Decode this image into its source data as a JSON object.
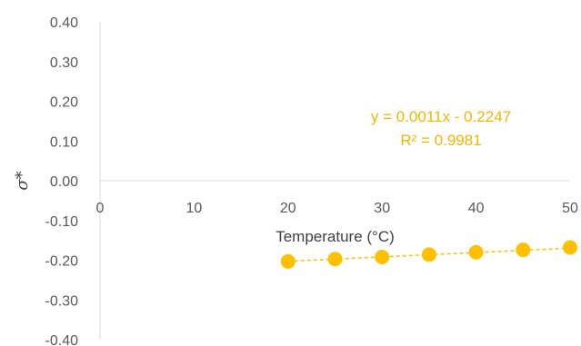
{
  "chart_data": {
    "type": "scatter",
    "xlabel": "Temperature (°C)",
    "ylabel": "σ*",
    "xlim": [
      0,
      50
    ],
    "ylim": [
      -0.4,
      0.4
    ],
    "x_ticks": [
      "0",
      "10",
      "20",
      "30",
      "40",
      "50"
    ],
    "y_ticks": [
      "0.40",
      "0.30",
      "0.20",
      "0.10",
      "0.00",
      "-0.10",
      "-0.20",
      "-0.30",
      "-0.40"
    ],
    "grid": false,
    "series": [
      {
        "x": [
          20,
          25,
          30,
          35,
          40,
          45,
          50
        ],
        "y": [
          -0.203,
          -0.197,
          -0.192,
          -0.186,
          -0.18,
          -0.174,
          -0.168
        ],
        "color": "#FFC000",
        "marker": "circle"
      }
    ],
    "trendline": {
      "type": "linear",
      "slope": 0.0011,
      "intercept": -0.2247,
      "equation": "y = 0.0011x - 0.2247",
      "r_squared": "R² = 0.9981",
      "color": "#FFC000",
      "style": "dashed"
    }
  }
}
